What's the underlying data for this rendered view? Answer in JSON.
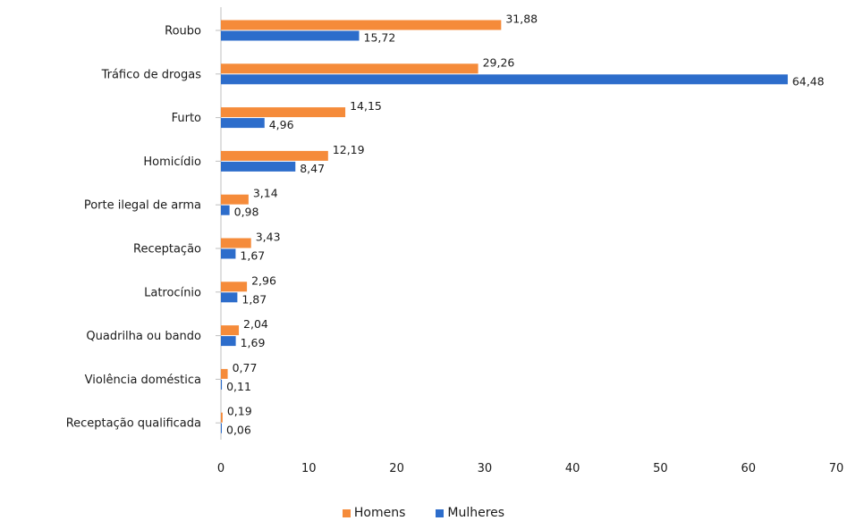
{
  "chart_data": {
    "type": "bar",
    "orientation": "horizontal",
    "categories": [
      "Roubo",
      "Tráfico de drogas",
      "Furto",
      "Homicídio",
      "Porte ilegal de arma",
      "Receptação",
      "Latrocínio",
      "Quadrilha ou bando",
      "Violência doméstica",
      "Receptação qualificada"
    ],
    "series": [
      {
        "name": "Homens",
        "color": "#F58B3A",
        "values": [
          31.88,
          29.26,
          14.15,
          12.19,
          3.14,
          3.43,
          2.96,
          2.04,
          0.77,
          0.19
        ],
        "labels": [
          "31,88",
          "29,26",
          "14,15",
          "12,19",
          "3,14",
          "3,43",
          "2,96",
          "2,04",
          "0,77",
          "0,19"
        ]
      },
      {
        "name": "Mulheres",
        "color": "#2D6DCB",
        "values": [
          15.72,
          64.48,
          4.96,
          8.47,
          0.98,
          1.67,
          1.87,
          1.69,
          0.11,
          0.06
        ],
        "labels": [
          "15,72",
          "64,48",
          "4,96",
          "8,47",
          "0,98",
          "1,67",
          "1,87",
          "1,69",
          "0,11",
          "0,06"
        ]
      }
    ],
    "xlim": [
      0,
      70
    ],
    "xticks": [
      "0",
      "10",
      "20",
      "30",
      "40",
      "50",
      "60",
      "70"
    ],
    "grid": false,
    "legend_position": "bottom"
  }
}
